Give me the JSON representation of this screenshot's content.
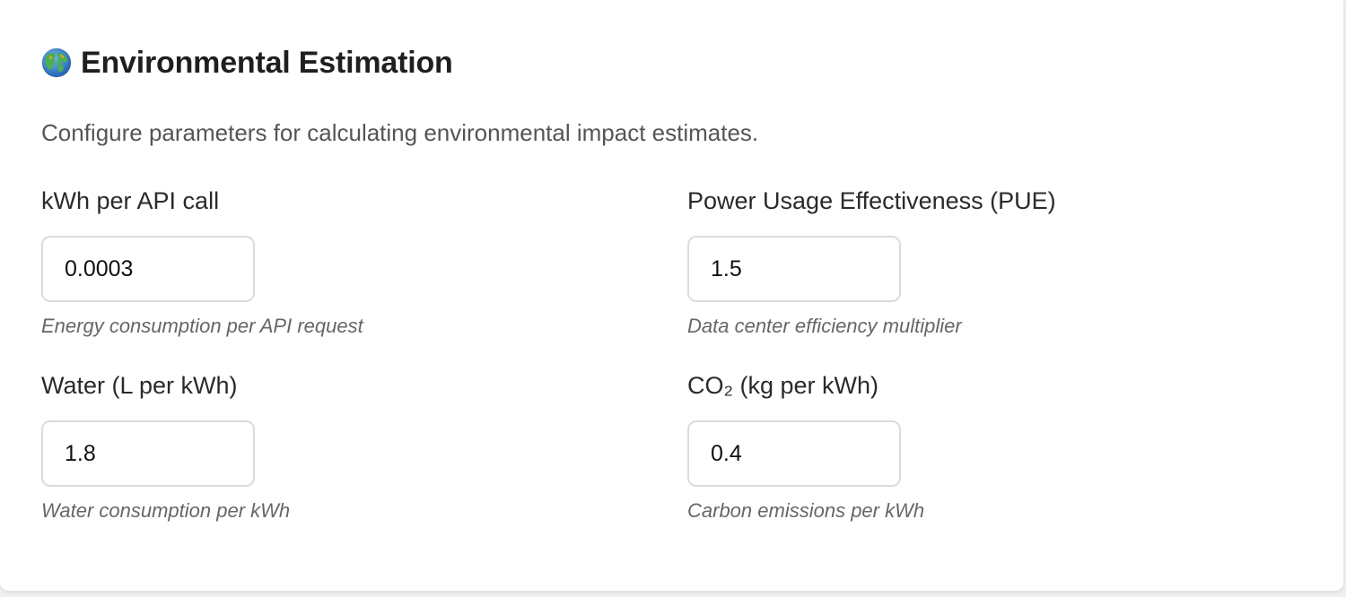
{
  "header": {
    "icon": "globe-icon",
    "title": "Environmental Estimation",
    "description": "Configure parameters for calculating environmental impact estimates."
  },
  "fields": {
    "kwh_per_call": {
      "label": "kWh per API call",
      "value": "0.0003",
      "hint": "Energy consumption per API request"
    },
    "pue": {
      "label": "Power Usage Effectiveness (PUE)",
      "value": "1.5",
      "hint": "Data center efficiency multiplier"
    },
    "water": {
      "label": "Water (L per kWh)",
      "value": "1.8",
      "hint": "Water consumption per kWh"
    },
    "co2": {
      "label": "CO₂ (kg per kWh)",
      "value": "0.4",
      "hint": "Carbon emissions per kWh"
    }
  },
  "colors": {
    "ocean": "#2f7fd8",
    "land": "#4caf50",
    "desert": "#d9a441"
  }
}
